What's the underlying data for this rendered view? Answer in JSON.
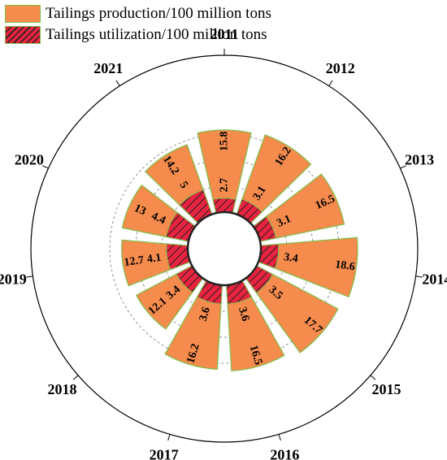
{
  "chart_data": {
    "type": "polar-bar",
    "categories": [
      "2011",
      "2012",
      "2013",
      "2014",
      "2015",
      "2016",
      "2017",
      "2018",
      "2019",
      "2020",
      "2021"
    ],
    "series": [
      {
        "name": "Tailings production/100 million tons",
        "values": [
          15.8,
          16.2,
          16.5,
          18.6,
          17.7,
          16.5,
          16.2,
          12.1,
          12.7,
          13,
          14.2
        ]
      },
      {
        "name": "Tailings utilization/100 million tons",
        "values": [
          2.7,
          3.1,
          3.1,
          3.4,
          3.5,
          3.6,
          3.6,
          3.4,
          4.1,
          4.4,
          5
        ]
      }
    ],
    "rlim": [
      0,
      20
    ],
    "grid": true,
    "legend_position": "top-left"
  },
  "colors": {
    "production_fill": "#f58b4c",
    "utilization_fill": "#e8233f",
    "bar_edge": "#7fbf4a",
    "hatch": "#222222"
  }
}
